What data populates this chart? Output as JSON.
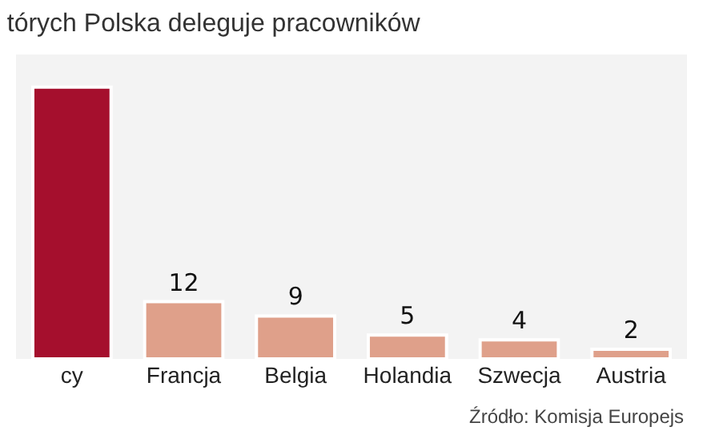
{
  "chart_data": {
    "type": "bar",
    "title": "tórych Polska deleguje pracowników",
    "categories": [
      "cy",
      "Francja",
      "Belgia",
      "Holandia",
      "Szwecja",
      "Austria"
    ],
    "values": [
      57,
      12,
      9,
      5,
      4,
      2
    ],
    "colors": [
      "#a50f2d",
      "#dfa08a",
      "#dfa08a",
      "#dfa08a",
      "#dfa08a",
      "#dfa08a"
    ],
    "value_labels": [
      null,
      "12",
      "9",
      "5",
      "4",
      "2"
    ],
    "annotations": [
      "Źródło: Komisja Europejs"
    ]
  }
}
